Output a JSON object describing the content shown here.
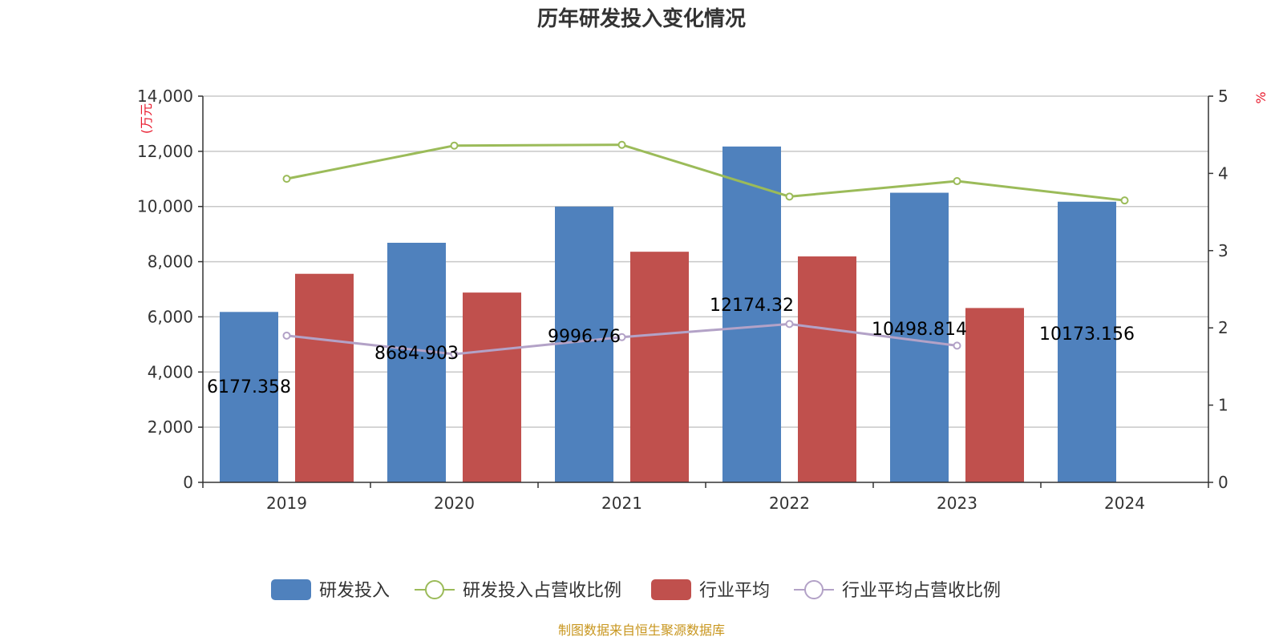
{
  "chart_data": {
    "type": "bar",
    "title": "历年研发投入变化情况",
    "categories": [
      "2019",
      "2020",
      "2021",
      "2022",
      "2023",
      "2024"
    ],
    "y_left": {
      "unit": "(万元",
      "ylim": [
        0,
        14000
      ],
      "ticks": [
        "0",
        "2,000",
        "4,000",
        "6,000",
        "8,000",
        "10,000",
        "12,000",
        "14,000"
      ],
      "tick_values": [
        0,
        2000,
        4000,
        6000,
        8000,
        10000,
        12000,
        14000
      ]
    },
    "y_right": {
      "unit": "%",
      "ylim": [
        0,
        5
      ],
      "ticks": [
        "0",
        "1",
        "2",
        "3",
        "4",
        "5"
      ],
      "tick_values": [
        0,
        1,
        2,
        3,
        4,
        5
      ]
    },
    "series": [
      {
        "name": "研发投入",
        "type": "bar",
        "axis": "left",
        "color": "#4f81bd",
        "values": [
          6177.358,
          8684.903,
          9996.76,
          12174.32,
          10498.814,
          10173.156
        ],
        "labels": [
          "6177.358",
          "8684.903",
          "9996.76",
          "12174.32",
          "10498.814",
          "10173.156"
        ]
      },
      {
        "name": "研发投入占营收比例",
        "type": "line",
        "axis": "right",
        "color": "#9bbb59",
        "values": [
          3.93,
          4.36,
          4.37,
          3.7,
          3.9,
          3.65
        ]
      },
      {
        "name": "行业平均",
        "type": "bar",
        "axis": "left",
        "color": "#c0504d",
        "values": [
          7560,
          6880,
          8360,
          8190,
          6320,
          null
        ]
      },
      {
        "name": "行业平均占营收比例",
        "type": "line",
        "axis": "right",
        "color": "#b3a2c7",
        "values": [
          1.9,
          1.66,
          1.88,
          2.05,
          1.77,
          null
        ]
      }
    ],
    "grid": true,
    "legend_position": "bottom"
  },
  "source": "制图数据来自恒生聚源数据库"
}
